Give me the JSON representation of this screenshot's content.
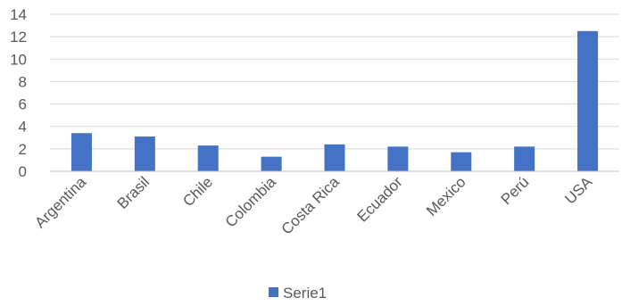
{
  "chart_data": {
    "type": "bar",
    "categories": [
      "Argentina",
      "Brasil",
      "Chile",
      "Colombia",
      "Costa Rica",
      "Ecuador",
      "Mexico",
      "Perú",
      "USA"
    ],
    "series": [
      {
        "name": "Serie1",
        "values": [
          3.4,
          3.1,
          2.3,
          1.3,
          2.4,
          2.2,
          1.7,
          2.2,
          12.5
        ]
      }
    ],
    "title": "",
    "xlabel": "",
    "ylabel": "",
    "ylim": [
      0,
      14
    ],
    "yticks": [
      "0",
      "2",
      "4",
      "6",
      "8",
      "10",
      "12",
      "14"
    ],
    "grid": true,
    "legend_position": "bottom",
    "colors": {
      "bar": "#4472C4",
      "grid": "#d9d9d9",
      "axis": "#bfbfbf",
      "text": "#595959"
    }
  }
}
